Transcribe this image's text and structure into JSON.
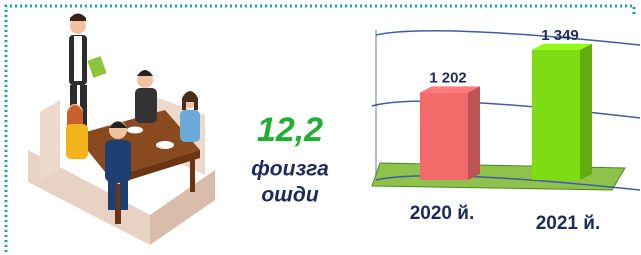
{
  "chart_data": {
    "type": "bar",
    "categories": [
      "2020 й.",
      "2021 й."
    ],
    "values": [
      1202,
      1349
    ],
    "value_labels": [
      "1 202",
      "1 349"
    ],
    "colors": [
      "#f26a6a",
      "#7ddc12"
    ],
    "ylim": [
      900,
      1400
    ],
    "growth": "12,2",
    "growth_text": [
      "фоизга",
      "ошди"
    ]
  }
}
